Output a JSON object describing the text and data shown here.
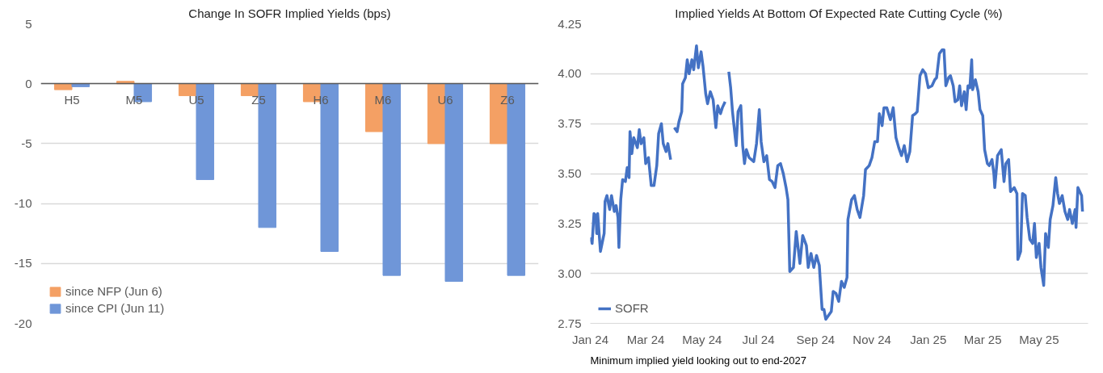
{
  "chart_data": [
    {
      "type": "bar",
      "title": "Change In SOFR Implied Yields (bps)",
      "categories": [
        "H5",
        "M5",
        "U5",
        "Z5",
        "H6",
        "M6",
        "U6",
        "Z6"
      ],
      "series": [
        {
          "name": "since NFP (Jun 6)",
          "color": "#f4a064",
          "values": [
            -0.5,
            0.2,
            -1,
            -1,
            -1.5,
            -4,
            -5,
            -5
          ]
        },
        {
          "name": "since CPI (Jun 11)",
          "color": "#6f96d8",
          "values": [
            -0.25,
            -1.5,
            -8,
            -12,
            -14,
            -16,
            -16.5,
            -16
          ]
        }
      ],
      "ylim": [
        -20,
        5
      ],
      "yticks": [
        -20,
        -15,
        -10,
        -5,
        0,
        5
      ],
      "grid": "y",
      "legend": "bottom left"
    },
    {
      "type": "line",
      "title": "Implied Yields At Bottom Of Expected Rate Cutting Cycle (%)",
      "annotations": [
        "Minimum implied yield looking out to end-2027"
      ],
      "x": [
        "2024-01-01",
        "2024-01-03",
        "2024-01-05",
        "2024-01-07",
        "2024-01-08",
        "2024-01-09",
        "2024-01-12",
        "2024-01-16",
        "2024-01-17",
        "2024-01-19",
        "2024-01-22",
        "2024-01-24",
        "2024-01-27",
        "2024-01-29",
        "2024-01-31",
        "2024-02-01",
        "2024-02-03",
        "2024-02-05",
        "2024-02-08",
        "2024-02-10",
        "2024-02-12",
        "2024-02-13",
        "2024-02-15",
        "2024-02-17",
        "2024-02-21",
        "2024-02-23",
        "2024-02-25",
        "2024-02-28",
        "2024-03-01",
        "2024-03-04",
        "2024-03-07",
        "2024-03-10",
        "2024-03-13",
        "2024-03-15",
        "2024-03-18",
        "2024-03-20",
        "2024-03-23",
        "2024-03-25",
        "2024-03-28",
        "2024-03-30",
        "2024-04-01",
        "2024-04-04",
        "2024-04-06",
        "2024-04-09",
        "2024-04-10",
        "2024-04-13",
        "2024-04-15",
        "2024-04-17",
        "2024-04-20",
        "2024-04-22",
        "2024-04-25",
        "2024-04-27",
        "2024-04-30",
        "2024-05-02",
        "2024-05-05",
        "2024-05-07",
        "2024-05-10",
        "2024-05-13",
        "2024-05-16",
        "2024-05-18",
        "2024-05-21",
        "2024-05-23",
        "2024-05-26",
        "2024-05-28",
        "2024-05-30",
        "2024-06-01",
        "2024-06-03",
        "2024-06-06",
        "2024-06-07",
        "2024-06-09",
        "2024-06-12",
        "2024-06-14",
        "2024-06-16",
        "2024-06-18",
        "2024-06-21",
        "2024-06-26",
        "2024-06-29",
        "2024-07-02",
        "2024-07-04",
        "2024-07-07",
        "2024-07-10",
        "2024-07-13",
        "2024-07-16",
        "2024-07-19",
        "2024-07-22",
        "2024-07-25",
        "2024-07-28",
        "2024-07-31",
        "2024-08-02",
        "2024-08-04",
        "2024-08-08",
        "2024-08-11",
        "2024-08-15",
        "2024-08-18",
        "2024-08-22",
        "2024-08-24",
        "2024-08-27",
        "2024-08-30",
        "2024-09-02",
        "2024-09-05",
        "2024-09-08",
        "2024-09-10",
        "2024-09-12",
        "2024-09-18",
        "2024-09-20",
        "2024-09-23",
        "2024-09-26",
        "2024-09-29",
        "2024-10-02",
        "2024-10-05",
        "2024-10-06",
        "2024-10-10",
        "2024-10-13",
        "2024-10-16",
        "2024-10-19",
        "2024-10-23",
        "2024-10-25",
        "2024-10-29",
        "2024-11-01",
        "2024-11-04",
        "2024-11-07",
        "2024-11-09",
        "2024-11-12",
        "2024-11-14",
        "2024-11-17",
        "2024-11-21",
        "2024-11-24",
        "2024-11-27",
        "2024-11-30",
        "2024-12-03",
        "2024-12-06",
        "2024-12-09",
        "2024-12-12",
        "2024-12-15",
        "2024-12-18",
        "2024-12-20",
        "2024-12-23",
        "2024-12-26",
        "2024-12-29",
        "2025-01-01",
        "2025-01-05",
        "2025-01-08",
        "2025-01-10",
        "2025-01-13",
        "2025-01-16",
        "2025-01-18",
        "2025-01-20",
        "2025-01-23",
        "2025-01-25",
        "2025-01-28",
        "2025-01-30",
        "2025-02-02",
        "2025-02-04",
        "2025-02-06",
        "2025-02-09",
        "2025-02-11",
        "2025-02-13",
        "2025-02-15",
        "2025-02-17",
        "2025-02-18",
        "2025-02-21",
        "2025-02-24",
        "2025-02-26",
        "2025-03-01",
        "2025-03-03",
        "2025-03-06",
        "2025-03-08",
        "2025-03-11",
        "2025-03-13",
        "2025-03-14",
        "2025-03-17",
        "2025-03-21",
        "2025-03-24",
        "2025-03-26",
        "2025-03-29",
        "2025-03-31",
        "2025-04-04",
        "2025-04-07",
        "2025-04-08",
        "2025-04-11",
        "2025-04-13",
        "2025-04-16",
        "2025-04-18",
        "2025-04-21",
        "2025-04-24",
        "2025-04-26",
        "2025-04-28",
        "2025-05-01",
        "2025-05-03",
        "2025-05-06",
        "2025-05-08",
        "2025-05-11",
        "2025-05-13",
        "2025-05-16",
        "2025-05-19",
        "2025-05-21",
        "2025-05-23",
        "2025-05-26",
        "2025-05-29",
        "2025-06-01",
        "2025-06-03",
        "2025-06-06",
        "2025-06-09",
        "2025-06-10",
        "2025-06-12",
        "2025-06-14",
        "2025-06-16",
        "2025-06-17"
      ],
      "series": [
        {
          "name": "SOFR",
          "color": "#4472c4",
          "values": [
            3.18,
            3.15,
            3.3,
            3.29,
            3.2,
            3.3,
            3.11,
            3.2,
            3.36,
            3.39,
            3.32,
            3.39,
            3.31,
            3.34,
            3.28,
            3.13,
            3.37,
            3.47,
            3.46,
            3.53,
            3.48,
            3.71,
            3.6,
            3.68,
            3.63,
            3.72,
            3.65,
            3.68,
            3.55,
            3.58,
            3.44,
            3.44,
            3.54,
            3.7,
            3.75,
            3.65,
            3.61,
            3.65,
            3.57,
            null,
            3.73,
            3.71,
            3.76,
            3.81,
            3.95,
            3.98,
            4.07,
            4.0,
            4.07,
            4.02,
            4.14,
            4.03,
            4.11,
            4.04,
            3.9,
            3.85,
            3.91,
            3.87,
            3.73,
            3.84,
            3.8,
            3.83,
            3.86,
            null,
            4.01,
            3.93,
            3.81,
            3.68,
            3.64,
            3.81,
            3.84,
            3.64,
            3.55,
            3.62,
            3.58,
            3.56,
            3.65,
            3.82,
            3.66,
            3.56,
            3.59,
            3.47,
            3.46,
            3.43,
            3.54,
            3.55,
            3.5,
            3.43,
            3.37,
            3.01,
            3.03,
            3.21,
            3.05,
            3.19,
            3.14,
            3.03,
            3.1,
            3.03,
            3.09,
            3.04,
            2.82,
            2.82,
            2.77,
            2.81,
            2.91,
            2.9,
            2.86,
            2.96,
            2.93,
            2.98,
            3.27,
            3.37,
            3.39,
            3.32,
            3.28,
            3.39,
            3.52,
            3.54,
            3.58,
            3.66,
            3.66,
            3.8,
            3.74,
            3.83,
            3.83,
            3.77,
            3.83,
            3.68,
            3.63,
            3.59,
            3.64,
            3.56,
            3.61,
            3.79,
            3.8,
            3.81,
            3.99,
            4.02,
            4.0,
            3.93,
            3.94,
            3.97,
            3.98,
            4.1,
            4.12,
            4.12,
            3.94,
            3.98,
            3.99,
            3.94,
            3.86,
            3.87,
            3.94,
            3.84,
            3.91,
            3.82,
            3.94,
            3.93,
            4.07,
            3.92,
            3.97,
            3.91,
            3.82,
            3.79,
            3.62,
            3.55,
            3.54,
            3.57,
            3.5,
            3.43,
            3.59,
            3.62,
            3.46,
            3.55,
            3.57,
            3.41,
            3.43,
            3.4,
            3.07,
            3.11,
            3.4,
            3.39,
            3.28,
            3.17,
            3.15,
            3.25,
            3.08,
            3.15,
            3.03,
            2.94,
            3.2,
            3.13,
            3.27,
            3.34,
            3.48,
            3.4,
            3.35,
            3.39,
            3.31,
            3.27,
            3.32,
            3.25,
            3.32,
            3.23,
            3.43,
            3.41,
            3.39,
            3.31
          ]
        }
      ],
      "xlim": [
        "2024-01-01",
        "2025-06-23"
      ],
      "xticks": [
        {
          "value": "2024-01-01",
          "label": "Jan 24"
        },
        {
          "value": "2024-03-01",
          "label": "Mar 24"
        },
        {
          "value": "2024-05-01",
          "label": "May 24"
        },
        {
          "value": "2024-07-01",
          "label": "Jul 24"
        },
        {
          "value": "2024-09-01",
          "label": "Sep 24"
        },
        {
          "value": "2024-11-01",
          "label": "Nov 24"
        },
        {
          "value": "2025-01-01",
          "label": "Jan 25"
        },
        {
          "value": "2025-03-01",
          "label": "Mar 25"
        },
        {
          "value": "2025-05-01",
          "label": "May 25"
        }
      ],
      "ylim": [
        2.75,
        4.25
      ],
      "yticks": [
        {
          "value": 2.75,
          "label": "2.75"
        },
        {
          "value": 3.0,
          "label": "3.00"
        },
        {
          "value": 3.25,
          "label": "3.25"
        },
        {
          "value": 3.5,
          "label": "3.50"
        },
        {
          "value": 3.75,
          "label": "3.75"
        },
        {
          "value": 4.0,
          "label": "4.00"
        },
        {
          "value": 4.25,
          "label": "4.25"
        }
      ],
      "grid": "y",
      "legend": "bottom left",
      "line_style": "solid"
    }
  ]
}
